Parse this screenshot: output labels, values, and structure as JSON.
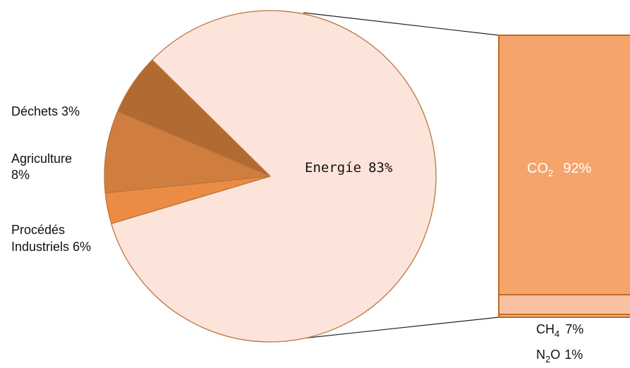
{
  "chart_data": [
    {
      "type": "pie",
      "title": "",
      "slices": [
        {
          "key": "energie",
          "label": "Energíe",
          "value": 83,
          "value_text": "83%",
          "color": "#FCE4DA"
        },
        {
          "key": "procedes",
          "label": "Procédés Industriels",
          "label_line1": "Procédés",
          "label_line2": "Industriels 6%",
          "value": 6,
          "value_text": "6%",
          "color": "#B06A32"
        },
        {
          "key": "agriculture",
          "label": "Agriculture",
          "label_line1": "Agriculture",
          "label_line2": "8%",
          "value": 8,
          "value_text": "8%",
          "color": "#D07E3F"
        },
        {
          "key": "dechets",
          "label": "Déchets",
          "label_line1": "Déchets 3%",
          "value": 3,
          "value_text": "3%",
          "color": "#EC8C44"
        }
      ],
      "border_color": "#B8763F"
    },
    {
      "type": "bar",
      "stacked": true,
      "breakdown_of": "energie",
      "categories": [
        "CO2",
        "CH4",
        "N2O"
      ],
      "series": [
        {
          "key": "co2",
          "base": "CO",
          "subscript": "2",
          "value": 92,
          "value_text": "92%",
          "color": "#F5A46C"
        },
        {
          "key": "ch4",
          "base": "CH",
          "subscript": "4",
          "value": 7,
          "value_text": "7%",
          "color": "#F7C1A2"
        },
        {
          "key": "n2o",
          "base": "N",
          "subscript": "2",
          "suffix": "O",
          "value": 1,
          "value_text": "1%",
          "color": "#F3B290"
        }
      ],
      "border_color": "#C0691F"
    }
  ]
}
